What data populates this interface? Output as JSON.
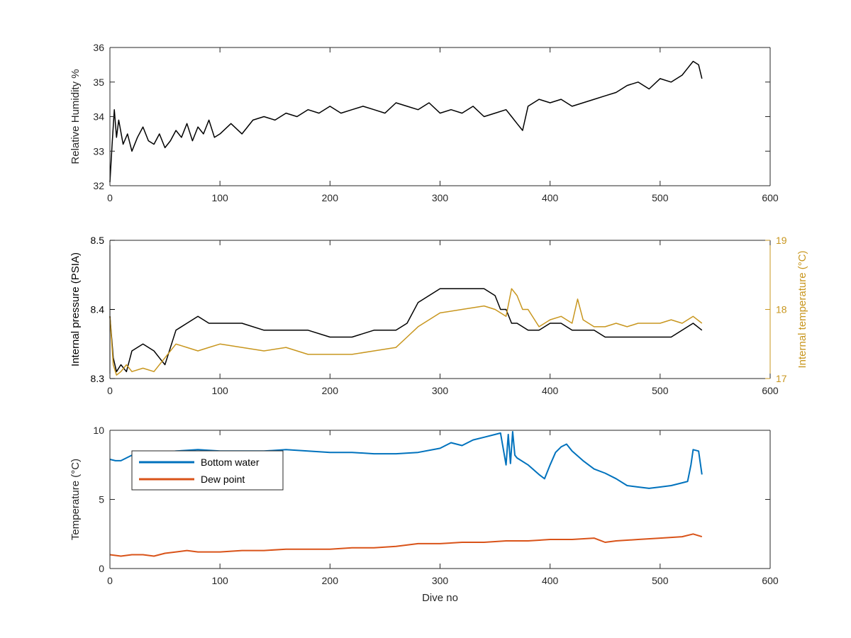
{
  "chart_data": [
    {
      "type": "line",
      "xlabel": "",
      "ylabel": "Relative Humidity %",
      "xlim": [
        0,
        600
      ],
      "ylim": [
        32,
        36
      ],
      "xticks": [
        "0",
        "100",
        "200",
        "300",
        "400",
        "500",
        "600"
      ],
      "yticks": [
        "32",
        "33",
        "34",
        "35",
        "36"
      ],
      "grid": false,
      "series": [
        {
          "color": "#000000",
          "x": [
            0,
            2,
            4,
            6,
            8,
            12,
            16,
            20,
            25,
            30,
            35,
            40,
            45,
            50,
            55,
            60,
            65,
            70,
            75,
            80,
            85,
            90,
            95,
            100,
            110,
            120,
            130,
            140,
            150,
            160,
            170,
            180,
            190,
            200,
            210,
            220,
            230,
            240,
            250,
            260,
            270,
            280,
            290,
            300,
            310,
            320,
            330,
            340,
            350,
            360,
            365,
            370,
            375,
            380,
            390,
            400,
            410,
            420,
            430,
            440,
            450,
            460,
            470,
            480,
            490,
            500,
            510,
            520,
            525,
            530,
            535,
            538
          ],
          "y": [
            32.1,
            33.2,
            34.2,
            33.4,
            33.9,
            33.2,
            33.5,
            33.0,
            33.4,
            33.7,
            33.3,
            33.2,
            33.5,
            33.1,
            33.3,
            33.6,
            33.4,
            33.8,
            33.3,
            33.7,
            33.5,
            33.9,
            33.4,
            33.5,
            33.8,
            33.5,
            33.9,
            34.0,
            33.9,
            34.1,
            34.0,
            34.2,
            34.1,
            34.3,
            34.1,
            34.2,
            34.3,
            34.2,
            34.1,
            34.4,
            34.3,
            34.2,
            34.4,
            34.1,
            34.2,
            34.1,
            34.3,
            34.0,
            34.1,
            34.2,
            34.0,
            33.8,
            33.6,
            34.3,
            34.5,
            34.4,
            34.5,
            34.3,
            34.4,
            34.5,
            34.6,
            34.7,
            34.9,
            35.0,
            34.8,
            35.1,
            35.0,
            35.2,
            35.4,
            35.6,
            35.5,
            35.1
          ]
        }
      ]
    },
    {
      "type": "line",
      "xlabel": "",
      "ylabel": "Internal pressure (PSIA)",
      "y2label": "Internal temperature (°C)",
      "xlim": [
        0,
        600
      ],
      "ylim": [
        8.3,
        8.5
      ],
      "y2lim": [
        17,
        19
      ],
      "xticks": [
        "0",
        "100",
        "200",
        "300",
        "400",
        "500",
        "600"
      ],
      "yticks": [
        "8.3",
        "8.4",
        "8.5"
      ],
      "y2ticks": [
        "17",
        "18",
        "19"
      ],
      "grid": false,
      "series": [
        {
          "axis": "left",
          "color": "#000000",
          "x": [
            0,
            3,
            6,
            10,
            15,
            20,
            30,
            40,
            45,
            50,
            60,
            70,
            80,
            90,
            100,
            120,
            140,
            160,
            180,
            200,
            220,
            240,
            260,
            270,
            280,
            290,
            300,
            320,
            340,
            350,
            355,
            360,
            365,
            370,
            380,
            390,
            400,
            410,
            420,
            430,
            440,
            450,
            460,
            470,
            480,
            490,
            500,
            510,
            520,
            530,
            538
          ],
          "y": [
            8.39,
            8.33,
            8.31,
            8.32,
            8.31,
            8.34,
            8.35,
            8.34,
            8.33,
            8.32,
            8.37,
            8.38,
            8.39,
            8.38,
            8.38,
            8.38,
            8.37,
            8.37,
            8.37,
            8.36,
            8.36,
            8.37,
            8.37,
            8.38,
            8.41,
            8.42,
            8.43,
            8.43,
            8.43,
            8.42,
            8.4,
            8.4,
            8.38,
            8.38,
            8.37,
            8.37,
            8.38,
            8.38,
            8.37,
            8.37,
            8.37,
            8.36,
            8.36,
            8.36,
            8.36,
            8.36,
            8.36,
            8.36,
            8.37,
            8.38,
            8.37
          ]
        },
        {
          "axis": "right",
          "color": "#C8961E",
          "x": [
            0,
            3,
            6,
            10,
            15,
            20,
            30,
            40,
            50,
            60,
            70,
            80,
            90,
            100,
            120,
            140,
            160,
            180,
            200,
            220,
            240,
            260,
            270,
            280,
            290,
            300,
            320,
            340,
            350,
            360,
            365,
            370,
            375,
            380,
            390,
            400,
            410,
            420,
            425,
            430,
            440,
            450,
            460,
            470,
            480,
            490,
            500,
            510,
            520,
            530,
            538
          ],
          "y": [
            17.9,
            17.2,
            17.05,
            17.1,
            17.2,
            17.1,
            17.15,
            17.1,
            17.3,
            17.5,
            17.45,
            17.4,
            17.45,
            17.5,
            17.45,
            17.4,
            17.45,
            17.35,
            17.35,
            17.35,
            17.4,
            17.45,
            17.6,
            17.75,
            17.85,
            17.95,
            18.0,
            18.05,
            18.0,
            17.9,
            18.3,
            18.2,
            18.0,
            18.0,
            17.75,
            17.85,
            17.9,
            17.8,
            18.15,
            17.85,
            17.75,
            17.75,
            17.8,
            17.75,
            17.8,
            17.8,
            17.8,
            17.85,
            17.8,
            17.9,
            17.8
          ]
        }
      ]
    },
    {
      "type": "line",
      "xlabel": "Dive no",
      "ylabel": "Temperature (°C)",
      "xlim": [
        0,
        600
      ],
      "ylim": [
        0,
        10
      ],
      "xticks": [
        "0",
        "100",
        "200",
        "300",
        "400",
        "500",
        "600"
      ],
      "yticks": [
        "0",
        "5",
        "10"
      ],
      "grid": false,
      "legend_position": "top-left",
      "series": [
        {
          "name": "Bottom water",
          "color": "#0072BD",
          "x": [
            0,
            5,
            10,
            20,
            30,
            40,
            50,
            60,
            80,
            100,
            120,
            140,
            160,
            180,
            200,
            220,
            240,
            260,
            280,
            300,
            310,
            320,
            330,
            340,
            350,
            355,
            360,
            362,
            364,
            366,
            368,
            370,
            380,
            390,
            395,
            400,
            405,
            410,
            415,
            420,
            430,
            440,
            450,
            460,
            470,
            480,
            490,
            500,
            510,
            520,
            525,
            528,
            530,
            535,
            538
          ],
          "y": [
            7.9,
            7.8,
            7.8,
            8.2,
            8.3,
            8.3,
            8.4,
            8.5,
            8.6,
            8.5,
            8.5,
            8.5,
            8.6,
            8.5,
            8.4,
            8.4,
            8.3,
            8.3,
            8.4,
            8.7,
            9.1,
            8.9,
            9.3,
            9.5,
            9.7,
            9.8,
            7.5,
            9.7,
            7.6,
            9.9,
            8.2,
            8.0,
            7.5,
            6.8,
            6.5,
            7.5,
            8.4,
            8.8,
            9.0,
            8.5,
            7.8,
            7.2,
            6.9,
            6.5,
            6.0,
            5.9,
            5.8,
            5.9,
            6.0,
            6.2,
            6.3,
            7.5,
            8.6,
            8.5,
            6.8
          ]
        },
        {
          "name": "Dew point",
          "color": "#D95319",
          "x": [
            0,
            10,
            20,
            30,
            40,
            50,
            60,
            70,
            80,
            100,
            120,
            140,
            160,
            180,
            200,
            220,
            240,
            260,
            280,
            300,
            320,
            340,
            360,
            380,
            400,
            420,
            440,
            450,
            460,
            480,
            500,
            520,
            530,
            538
          ],
          "y": [
            1.0,
            0.9,
            1.0,
            1.0,
            0.9,
            1.1,
            1.2,
            1.3,
            1.2,
            1.2,
            1.3,
            1.3,
            1.4,
            1.4,
            1.4,
            1.5,
            1.5,
            1.6,
            1.8,
            1.8,
            1.9,
            1.9,
            2.0,
            2.0,
            2.1,
            2.1,
            2.2,
            1.9,
            2.0,
            2.1,
            2.2,
            2.3,
            2.5,
            2.3
          ]
        }
      ]
    }
  ]
}
